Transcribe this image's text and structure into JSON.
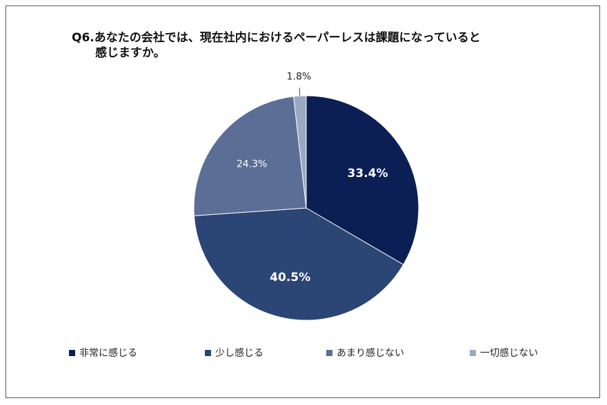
{
  "title": {
    "line1": "Q6.あなたの会社では、現在社内におけるペーパーレスは課題になっていると",
    "line2": "感じますか。"
  },
  "chart_data": {
    "type": "pie",
    "categories": [
      "非常に感じる",
      "少し感じる",
      "あまり感じない",
      "一切感じない"
    ],
    "values": [
      33.4,
      40.5,
      24.3,
      1.8
    ],
    "labels": [
      "33.4%",
      "40.5%",
      "24.3%",
      "1.8%"
    ],
    "colors": [
      "#0b1f55",
      "#2b4574",
      "#5a6e96",
      "#9aa8c2"
    ],
    "label_colors": [
      "#ffffff",
      "#ffffff",
      "#ffffff",
      "#222222"
    ],
    "start_angle": "12 o'clock, clockwise",
    "legend_position": "bottom"
  }
}
